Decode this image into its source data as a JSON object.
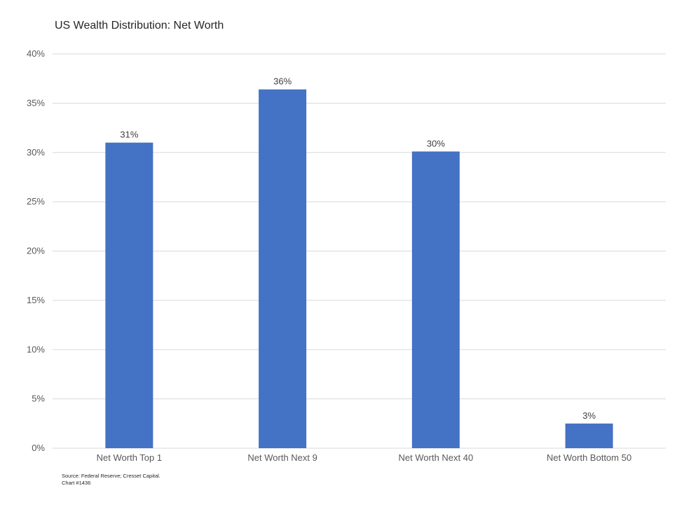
{
  "chart_data": {
    "type": "bar",
    "title": "US Wealth Distribution: Net Worth",
    "categories": [
      "Net Worth Top 1",
      "Net Worth Next 9",
      "Net Worth Next 40",
      "Net Worth Bottom 50"
    ],
    "values": [
      31,
      36.4,
      30.1,
      2.5
    ],
    "data_labels": [
      "31%",
      "36%",
      "30%",
      "3%"
    ],
    "ylim": [
      0,
      40
    ],
    "yticks": [
      0,
      5,
      10,
      15,
      20,
      25,
      30,
      35,
      40
    ],
    "ytick_labels": [
      "0%",
      "5%",
      "10%",
      "15%",
      "20%",
      "25%",
      "30%",
      "35%",
      "40%"
    ],
    "xlabel": "",
    "ylabel": "",
    "grid": true,
    "bar_color": "#4472C4",
    "grid_color": "#D9D9D9"
  },
  "footer": {
    "source": "Source: Federal Reserve; Cresset Capital.",
    "chart_id": "Chart #1436"
  }
}
